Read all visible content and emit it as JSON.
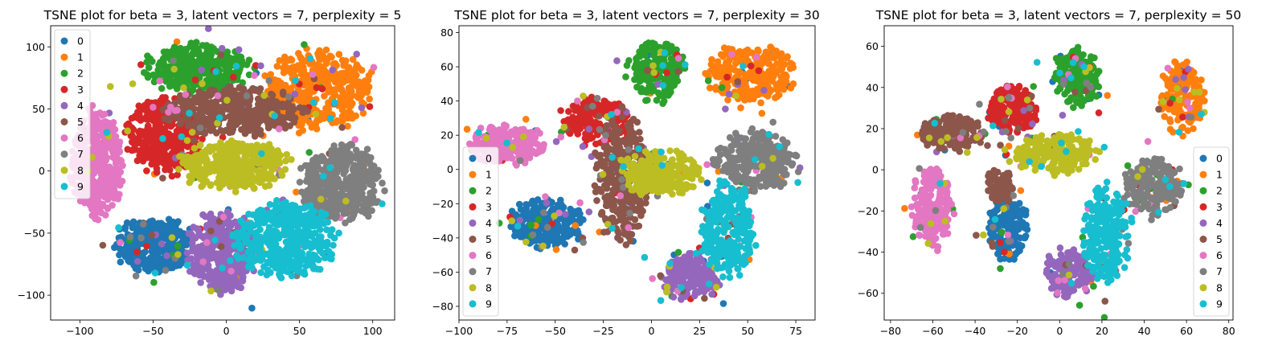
{
  "chart_data": [
    {
      "type": "scatter",
      "title": "TSNE plot for beta = 3, latent vectors = 7, perplexity = 5",
      "xlabel": "",
      "ylabel": "",
      "xlim": [
        -120,
        115
      ],
      "ylim": [
        -120,
        117
      ],
      "xticks": [
        -100,
        -50,
        0,
        50,
        100
      ],
      "yticks": [
        -100,
        -50,
        0,
        50,
        100
      ],
      "grid": false,
      "legend_position": "upper left",
      "legend": [
        "0",
        "1",
        "2",
        "3",
        "4",
        "5",
        "6",
        "7",
        "8",
        "9"
      ],
      "series": [
        {
          "name": "0",
          "color": "#1f77b4",
          "clusters": [
            {
              "cx": -48,
              "cy": -60,
              "rx": 28,
              "ry": 22
            }
          ]
        },
        {
          "name": "1",
          "color": "#ff7f0e",
          "clusters": [
            {
              "cx": 62,
              "cy": 65,
              "rx": 38,
              "ry": 33
            }
          ]
        },
        {
          "name": "2",
          "color": "#2ca02c",
          "clusters": [
            {
              "cx": -20,
              "cy": 82,
              "rx": 38,
              "ry": 20
            }
          ]
        },
        {
          "name": "3",
          "color": "#d62728",
          "clusters": [
            {
              "cx": -42,
              "cy": 30,
              "rx": 26,
              "ry": 32
            }
          ]
        },
        {
          "name": "4",
          "color": "#9467bd",
          "clusters": [
            {
              "cx": -2,
              "cy": -65,
              "rx": 25,
              "ry": 33
            }
          ]
        },
        {
          "name": "5",
          "color": "#8c564b",
          "clusters": [
            {
              "cx": 5,
              "cy": 48,
              "rx": 48,
              "ry": 20
            }
          ]
        },
        {
          "name": "6",
          "color": "#e377c2",
          "clusters": [
            {
              "cx": -88,
              "cy": 5,
              "rx": 18,
              "ry": 45
            }
          ]
        },
        {
          "name": "7",
          "color": "#7f7f7f",
          "clusters": [
            {
              "cx": 78,
              "cy": -10,
              "rx": 28,
              "ry": 32
            }
          ]
        },
        {
          "name": "8",
          "color": "#bcbd22",
          "clusters": [
            {
              "cx": 5,
              "cy": 5,
              "rx": 38,
              "ry": 20
            }
          ]
        },
        {
          "name": "9",
          "color": "#17becf",
          "clusters": [
            {
              "cx": 40,
              "cy": -55,
              "rx": 35,
              "ry": 32
            }
          ]
        }
      ]
    },
    {
      "type": "scatter",
      "title": "TSNE plot for beta = 3, latent vectors = 7, perplexity = 30",
      "xlabel": "",
      "ylabel": "",
      "xlim": [
        -100,
        85
      ],
      "ylim": [
        -88,
        84
      ],
      "xticks": [
        -100,
        -75,
        -50,
        -25,
        0,
        25,
        50,
        75
      ],
      "yticks": [
        -80,
        -60,
        -40,
        -20,
        0,
        20,
        40,
        60,
        80
      ],
      "grid": false,
      "legend_position": "lower left",
      "legend": [
        "0",
        "1",
        "2",
        "3",
        "4",
        "5",
        "6",
        "7",
        "8",
        "9"
      ],
      "series": [
        {
          "name": "0",
          "color": "#1f77b4",
          "clusters": [
            {
              "cx": -55,
              "cy": -32,
              "rx": 20,
              "ry": 15
            }
          ]
        },
        {
          "name": "1",
          "color": "#ff7f0e",
          "clusters": [
            {
              "cx": 52,
              "cy": 56,
              "rx": 23,
              "ry": 17
            }
          ]
        },
        {
          "name": "2",
          "color": "#2ca02c",
          "clusters": [
            {
              "cx": 2,
              "cy": 58,
              "rx": 15,
              "ry": 19
            }
          ]
        },
        {
          "name": "3",
          "color": "#d62728",
          "clusters": [
            {
              "cx": -28,
              "cy": 28,
              "rx": 18,
              "ry": 14
            }
          ]
        },
        {
          "name": "4",
          "color": "#9467bd",
          "clusters": [
            {
              "cx": 20,
              "cy": -62,
              "rx": 16,
              "ry": 14
            }
          ]
        },
        {
          "name": "5",
          "color": "#8c564b",
          "clusters": [
            {
              "cx": -15,
              "cy": -5,
              "rx": 14,
              "ry": 40
            }
          ]
        },
        {
          "name": "6",
          "color": "#e377c2",
          "clusters": [
            {
              "cx": -75,
              "cy": 15,
              "rx": 20,
              "ry": 12
            }
          ]
        },
        {
          "name": "7",
          "color": "#7f7f7f",
          "clusters": [
            {
              "cx": 55,
              "cy": 5,
              "rx": 22,
              "ry": 18
            }
          ]
        },
        {
          "name": "8",
          "color": "#bcbd22",
          "clusters": [
            {
              "cx": 5,
              "cy": -2,
              "rx": 22,
              "ry": 14
            }
          ]
        },
        {
          "name": "9",
          "color": "#17becf",
          "clusters": [
            {
              "cx": 40,
              "cy": -35,
              "rx": 15,
              "ry": 28
            }
          ]
        }
      ]
    },
    {
      "type": "scatter",
      "title": "TSNE plot for beta = 3, latent vectors = 7, perplexity = 50",
      "xlabel": "",
      "ylabel": "",
      "xlim": [
        -83,
        82
      ],
      "ylim": [
        -73,
        70
      ],
      "xticks": [
        -80,
        -60,
        -40,
        -20,
        0,
        20,
        40,
        60,
        80
      ],
      "yticks": [
        -60,
        -40,
        -20,
        0,
        20,
        40,
        60
      ],
      "grid": false,
      "legend_position": "lower right",
      "legend": [
        "0",
        "1",
        "2",
        "3",
        "4",
        "5",
        "6",
        "7",
        "8",
        "9"
      ],
      "series": [
        {
          "name": "0",
          "color": "#1f77b4",
          "clusters": [
            {
              "cx": -25,
              "cy": -28,
              "rx": 10,
              "ry": 16
            }
          ]
        },
        {
          "name": "1",
          "color": "#ff7f0e",
          "clusters": [
            {
              "cx": 58,
              "cy": 35,
              "rx": 10,
              "ry": 18
            }
          ]
        },
        {
          "name": "2",
          "color": "#2ca02c",
          "clusters": [
            {
              "cx": 8,
              "cy": 45,
              "rx": 12,
              "ry": 14
            }
          ]
        },
        {
          "name": "3",
          "color": "#d62728",
          "clusters": [
            {
              "cx": -22,
              "cy": 30,
              "rx": 12,
              "ry": 12
            }
          ]
        },
        {
          "name": "4",
          "color": "#9467bd",
          "clusters": [
            {
              "cx": 4,
              "cy": -50,
              "rx": 12,
              "ry": 12
            }
          ]
        },
        {
          "name": "5",
          "color": "#8c564b",
          "clusters": [
            {
              "cx": -50,
              "cy": 18,
              "rx": 16,
              "ry": 9
            },
            {
              "cx": -28,
              "cy": -8,
              "rx": 7,
              "ry": 8
            }
          ]
        },
        {
          "name": "6",
          "color": "#e377c2",
          "clusters": [
            {
              "cx": -60,
              "cy": -18,
              "rx": 10,
              "ry": 20
            }
          ]
        },
        {
          "name": "7",
          "color": "#7f7f7f",
          "clusters": [
            {
              "cx": 45,
              "cy": -8,
              "rx": 15,
              "ry": 14
            }
          ]
        },
        {
          "name": "8",
          "color": "#bcbd22",
          "clusters": [
            {
              "cx": -3,
              "cy": 8,
              "rx": 22,
              "ry": 10
            }
          ]
        },
        {
          "name": "9",
          "color": "#17becf",
          "clusters": [
            {
              "cx": 22,
              "cy": -32,
              "rx": 12,
              "ry": 24
            }
          ]
        }
      ]
    }
  ]
}
